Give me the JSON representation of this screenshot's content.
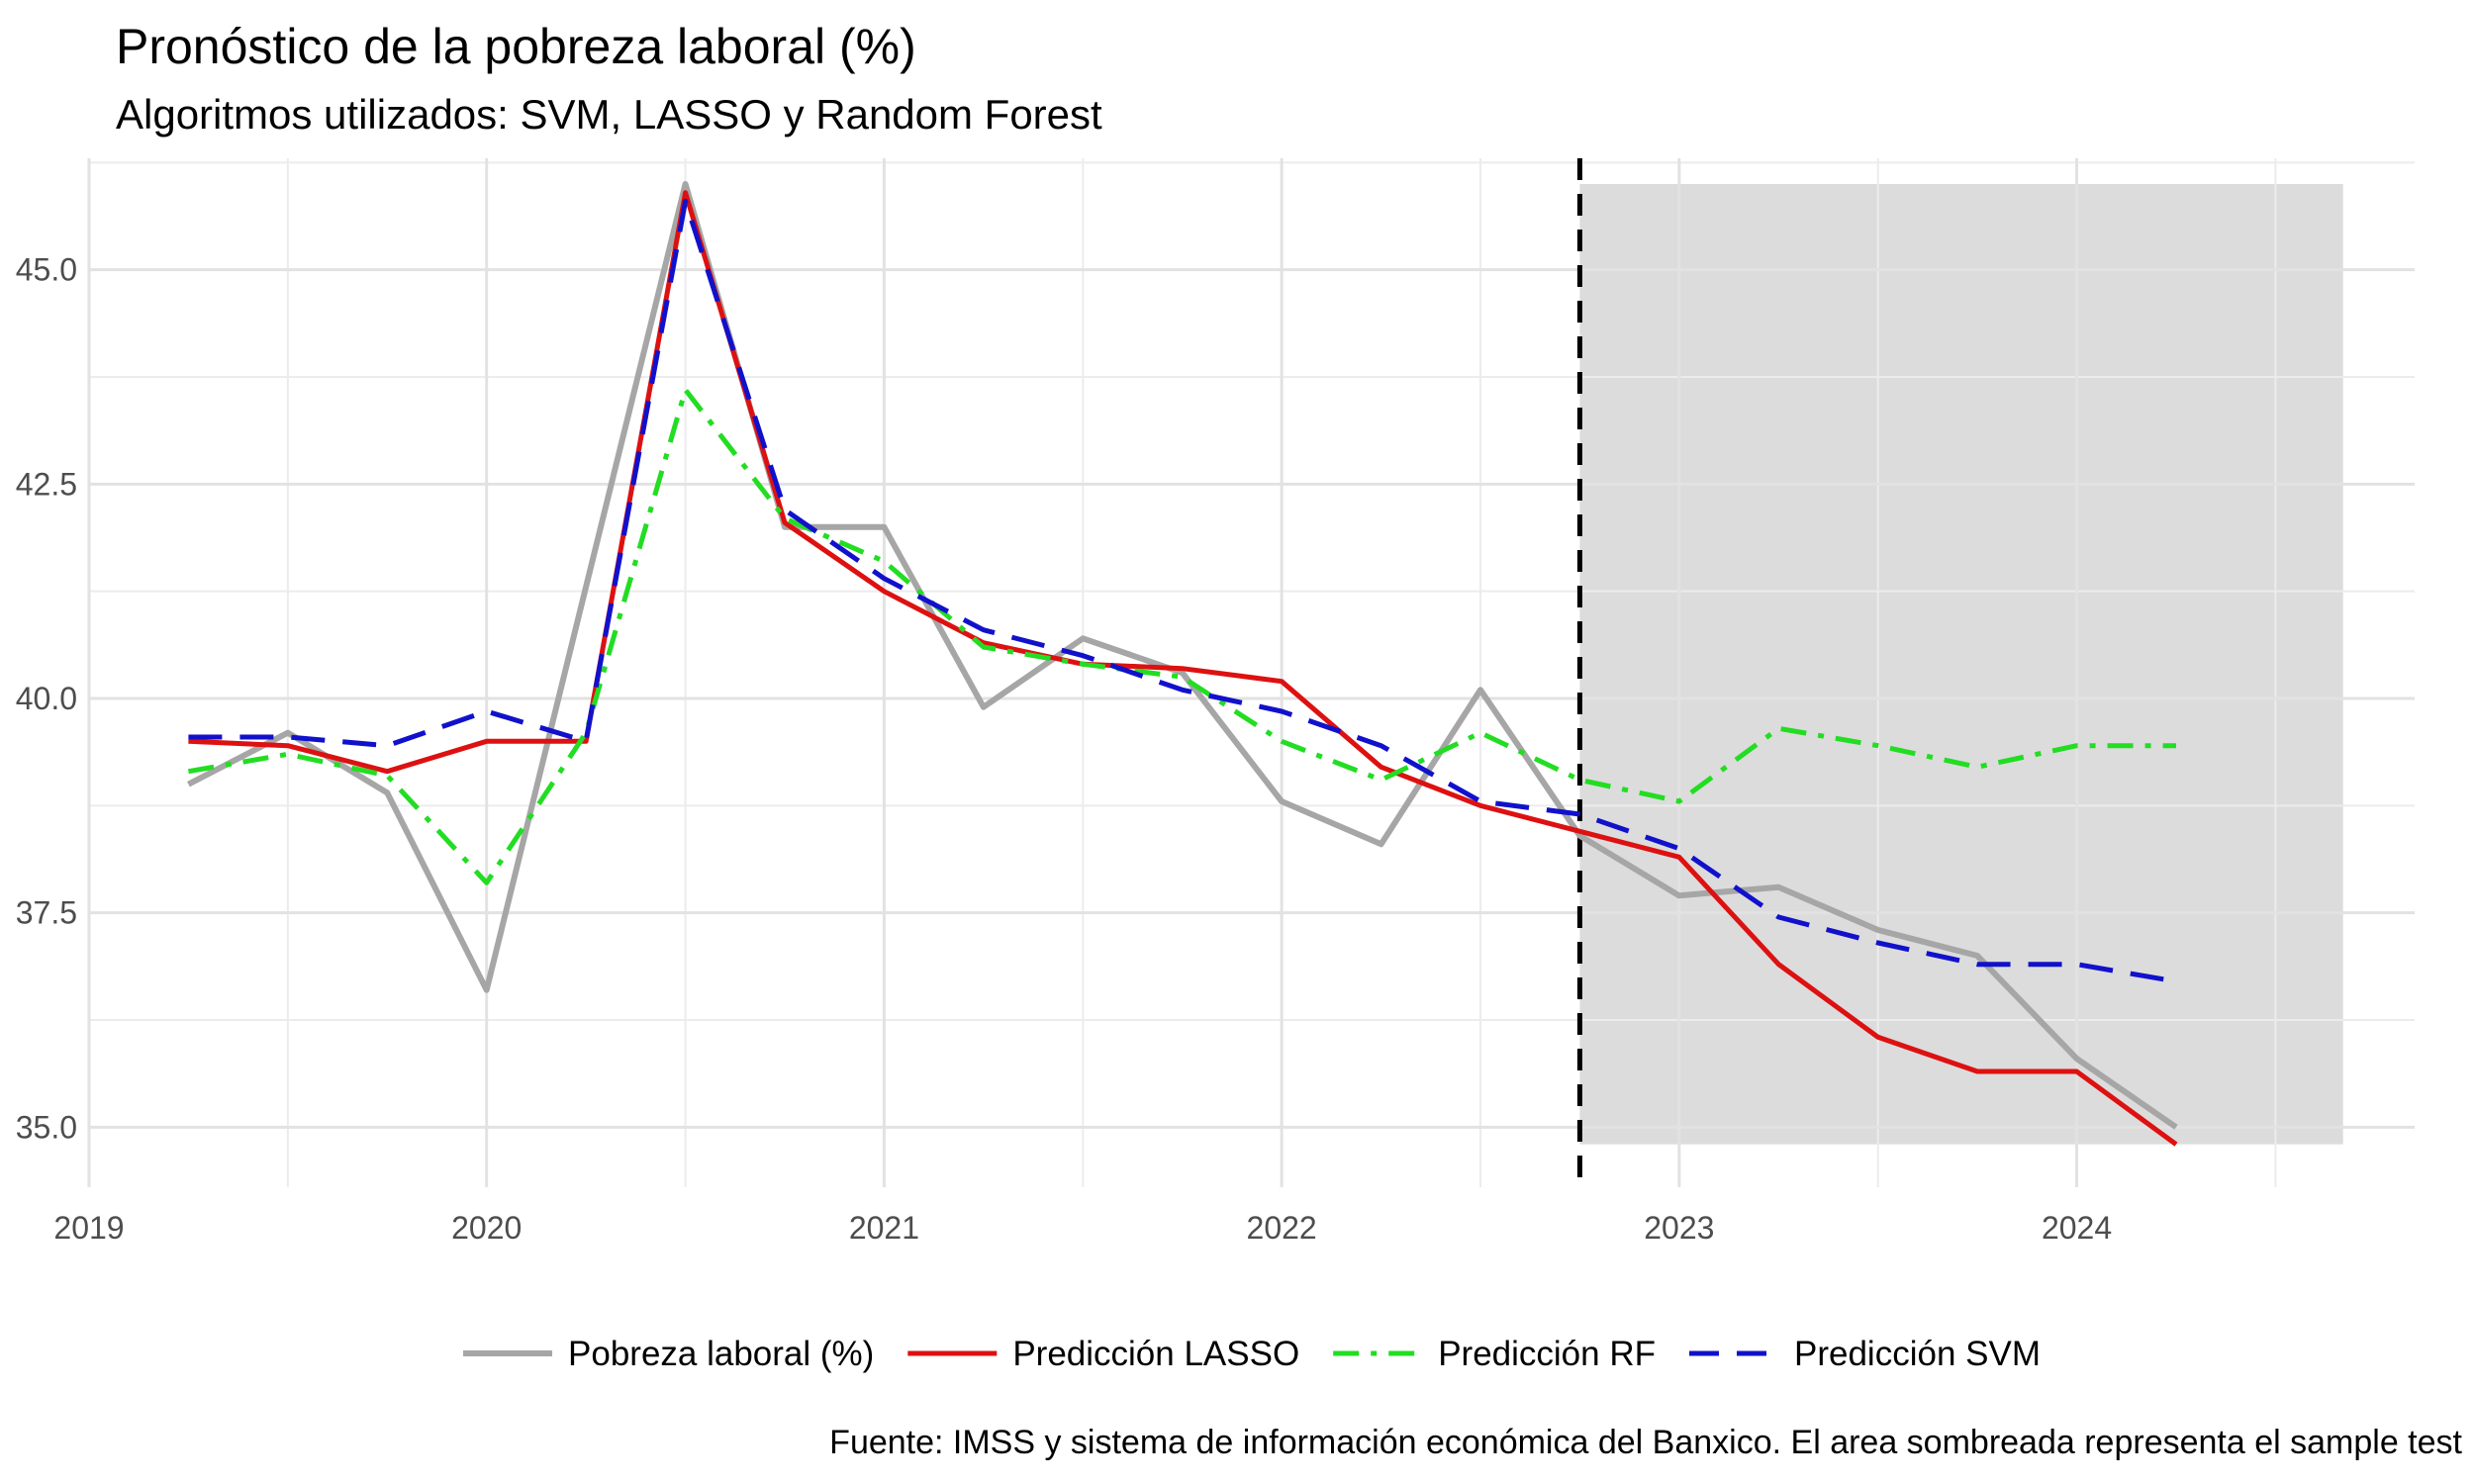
{
  "chart_data": {
    "type": "line",
    "title": "Pronóstico de la pobreza laboral (%)",
    "subtitle": "Algoritmos utilizados: SVM, LASSO y Random Forest",
    "caption": "Fuente: IMSS y sistema de información económica del Banxico. El area sombreada representa el sample test",
    "xlabel": "",
    "ylabel": "",
    "xlim": [
      2019,
      2024.85
    ],
    "ylim": [
      34.3,
      46.3
    ],
    "x_ticks": [
      {
        "value": 2019,
        "label": "2019"
      },
      {
        "value": 2020,
        "label": "2020"
      },
      {
        "value": 2021,
        "label": "2021"
      },
      {
        "value": 2022,
        "label": "2022"
      },
      {
        "value": 2023,
        "label": "2023"
      },
      {
        "value": 2024,
        "label": "2024"
      }
    ],
    "y_ticks": [
      {
        "value": 35.0,
        "label": "35.0"
      },
      {
        "value": 37.5,
        "label": "37.5"
      },
      {
        "value": 40.0,
        "label": "40.0"
      },
      {
        "value": 42.5,
        "label": "42.5"
      },
      {
        "value": 45.0,
        "label": "45.0"
      }
    ],
    "grid": true,
    "legend_position": "bottom",
    "vline": {
      "x": 2022.75,
      "style": "dashed",
      "color": "#000000"
    },
    "shaded_region": {
      "x": [
        2022.75,
        2024.67
      ],
      "y": [
        34.8,
        46.0
      ],
      "color": "#dcdcdc"
    },
    "x": [
      2019.25,
      2019.5,
      2019.75,
      2020.0,
      2020.25,
      2020.5,
      2020.75,
      2021.0,
      2021.25,
      2021.5,
      2021.75,
      2022.0,
      2022.25,
      2022.5,
      2022.75,
      2023.0,
      2023.25,
      2023.5,
      2023.75,
      2024.0,
      2024.25
    ],
    "series": [
      {
        "name": "Pobreza laboral (%)",
        "color": "#a6a6a6",
        "dash": "solid",
        "values": [
          39.0,
          39.6,
          38.9,
          36.6,
          41.3,
          46.0,
          42.0,
          42.0,
          39.9,
          40.7,
          40.3,
          38.8,
          38.3,
          40.1,
          38.4,
          37.7,
          37.8,
          37.3,
          37.0,
          35.8,
          35.0
        ]
      },
      {
        "name": "Predicción LASSO",
        "color": "#dd1111",
        "dash": "solid",
        "values": [
          39.5,
          39.45,
          39.15,
          39.5,
          39.5,
          45.9,
          42.05,
          41.25,
          40.65,
          40.4,
          40.35,
          40.2,
          39.2,
          38.75,
          38.45,
          38.15,
          36.9,
          36.05,
          35.65,
          35.65,
          34.8
        ]
      },
      {
        "name": "Predicción RF",
        "color": "#22dd22",
        "dash": "dashdot",
        "values": [
          39.15,
          39.35,
          39.1,
          37.85,
          39.6,
          43.6,
          42.1,
          41.6,
          40.6,
          40.4,
          40.25,
          39.5,
          39.05,
          39.6,
          39.05,
          38.8,
          39.65,
          39.45,
          39.2,
          39.45,
          39.45
        ]
      },
      {
        "name": "Predicción SVM",
        "color": "#1111cc",
        "dash": "longdash",
        "values": [
          39.55,
          39.55,
          39.45,
          39.85,
          39.5,
          45.8,
          42.2,
          41.4,
          40.8,
          40.5,
          40.1,
          39.85,
          39.45,
          38.8,
          38.65,
          38.25,
          37.45,
          37.15,
          36.9,
          36.9,
          36.7
        ]
      }
    ]
  }
}
